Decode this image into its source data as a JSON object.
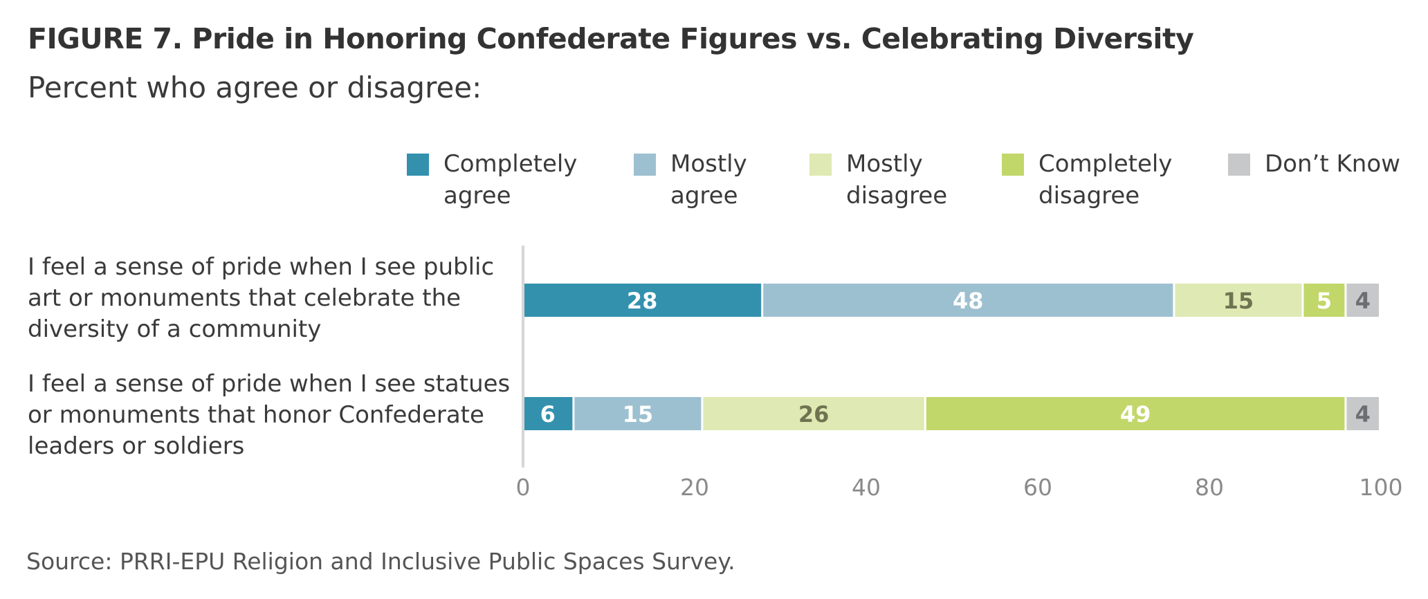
{
  "title": "FIGURE 7. Pride in Honoring Confederate Figures vs. Celebrating Diversity",
  "subtitle": "Percent who agree or disagree:",
  "source": "Source: PRRI-EPU Religion and Inclusive Public Spaces Survey.",
  "colors": {
    "completely_agree": "#3391ae",
    "mostly_agree": "#9dc0d0",
    "mostly_disagree": "#dfe9b3",
    "completely_disagree": "#c1d76a",
    "dont_know": "#c7c8ca",
    "label_light": "#ffffff",
    "label_dark": "#6f7350",
    "label_gray": "#6d6e71"
  },
  "legend": [
    {
      "label": "Completely\nagree"
    },
    {
      "label": "Mostly\nagree"
    },
    {
      "label": "Mostly\ndisagree"
    },
    {
      "label": "Completely\ndisagree"
    },
    {
      "label": "Don’t Know"
    }
  ],
  "chart_data": {
    "type": "bar",
    "orientation": "horizontal",
    "stacked": true,
    "categories": [
      "I feel a sense of pride when I see public\nart or monuments that celebrate the\ndiversity of a community",
      "I feel a sense of pride when I see statues\nor monuments that honor Confederate\nleaders or soldiers"
    ],
    "series": [
      {
        "name": "Completely agree",
        "values": [
          28,
          6
        ]
      },
      {
        "name": "Mostly agree",
        "values": [
          48,
          15
        ]
      },
      {
        "name": "Mostly disagree",
        "values": [
          15,
          26
        ]
      },
      {
        "name": "Completely disagree",
        "values": [
          5,
          49
        ]
      },
      {
        "name": "Don’t Know",
        "values": [
          4,
          4
        ]
      }
    ],
    "xlim": [
      0,
      100
    ],
    "xticks": [
      0,
      20,
      40,
      60,
      80,
      100
    ],
    "grid": false,
    "legend_position": "top-right",
    "data_labels": true
  }
}
